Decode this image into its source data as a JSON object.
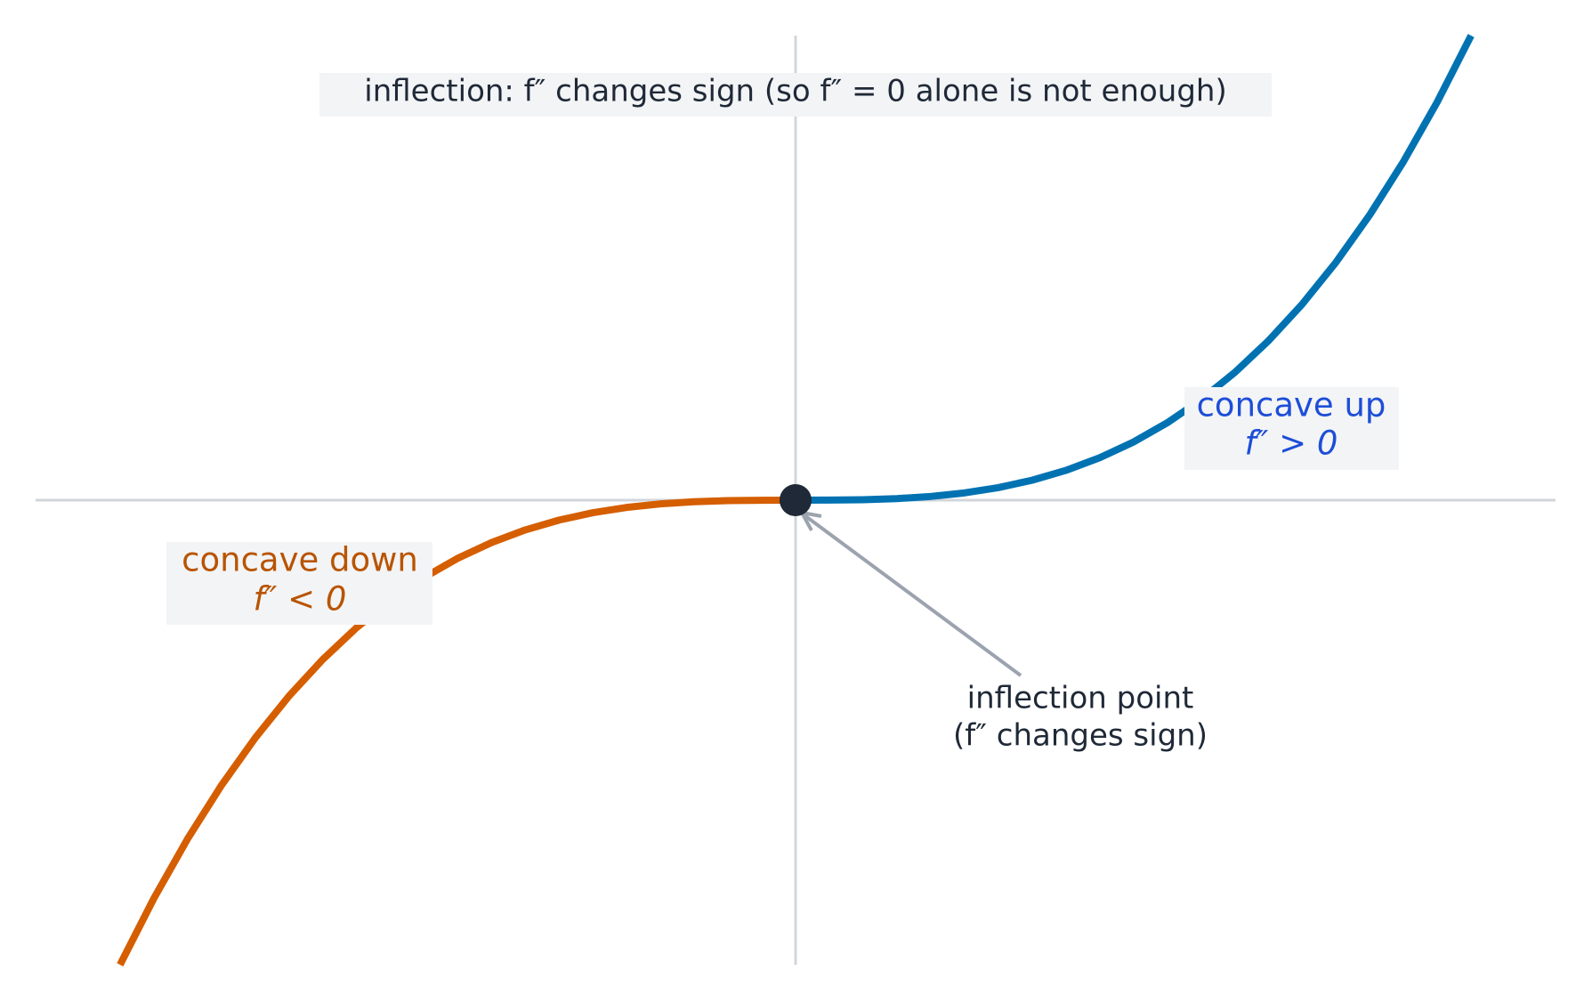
{
  "chart_data": {
    "type": "line",
    "title": "inflection: f″ changes sign (so f″ = 0 alone is not enough)",
    "xlim": [
      -1.125,
      1.125
    ],
    "ylim": [
      -1,
      1
    ],
    "series": [
      {
        "color": "#d55e00",
        "x": [
          -1,
          -0.95,
          -0.9,
          -0.85,
          -0.8,
          -0.75,
          -0.7,
          -0.65,
          -0.6,
          -0.55,
          -0.5,
          -0.45,
          -0.4,
          -0.35,
          -0.3,
          -0.25,
          -0.2,
          -0.15,
          -0.1,
          -0.05,
          0
        ],
        "values": [
          -1,
          -0.857375,
          -0.729,
          -0.614125,
          -0.512,
          -0.421875,
          -0.343,
          -0.274625,
          -0.216,
          -0.166375,
          -0.125,
          -0.091125,
          -0.064,
          -0.042875,
          -0.027,
          -0.015625,
          -0.008,
          -0.003375,
          -0.001,
          -0.000125,
          0
        ]
      },
      {
        "color": "#0072b2",
        "x": [
          0,
          0.05,
          0.1,
          0.15,
          0.2,
          0.25,
          0.3,
          0.35,
          0.4,
          0.45,
          0.5,
          0.55,
          0.6,
          0.65,
          0.7,
          0.75,
          0.8,
          0.85,
          0.9,
          0.95,
          1
        ],
        "values": [
          0,
          0.000125,
          0.001,
          0.003375,
          0.008,
          0.015625,
          0.027,
          0.042875,
          0.064,
          0.091125,
          0.125,
          0.166375,
          0.216,
          0.274625,
          0.343,
          0.421875,
          0.512,
          0.614125,
          0.729,
          0.857375,
          1
        ]
      }
    ],
    "point": {
      "x": 0,
      "y": 0,
      "color": "#1f2937"
    },
    "annotations": [
      "concave down",
      "f″ < 0",
      "concave up",
      "f″ > 0",
      "inflection point",
      "(f″ changes sign)"
    ]
  }
}
